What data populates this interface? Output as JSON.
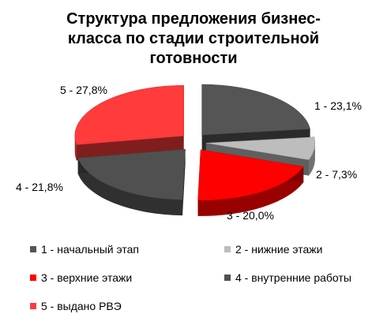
{
  "chart_data": {
    "type": "pie",
    "title": "Структура предложения бизнес-класса по стадии строительной готовности",
    "title_lines": [
      "Структура предложения бизнес-",
      "класса по стадии строительной",
      "готовности"
    ],
    "slices": [
      {
        "id": 1,
        "label": "1 - начальный этап",
        "value": 23.1,
        "data_label": "1 - 23,1%",
        "color": "#555555"
      },
      {
        "id": 2,
        "label": "2 - нижние этажи",
        "value": 7.3,
        "data_label": "2 - 7,3%",
        "color": "#bdbdbd"
      },
      {
        "id": 3,
        "label": "3 - верхние этажи",
        "value": 20.0,
        "data_label": "3 - 20,0%",
        "color": "#ff0000"
      },
      {
        "id": 4,
        "label": "4 - внутренние работы",
        "value": 21.8,
        "data_label": "4 - 21,8%",
        "color": "#505050"
      },
      {
        "id": 5,
        "label": "5 - выдано РВЭ",
        "value": 27.8,
        "data_label": "5 - 27,8%",
        "color": "#ff3b3b"
      }
    ],
    "legend_position": "bottom",
    "exploded": true,
    "three_d": true
  }
}
